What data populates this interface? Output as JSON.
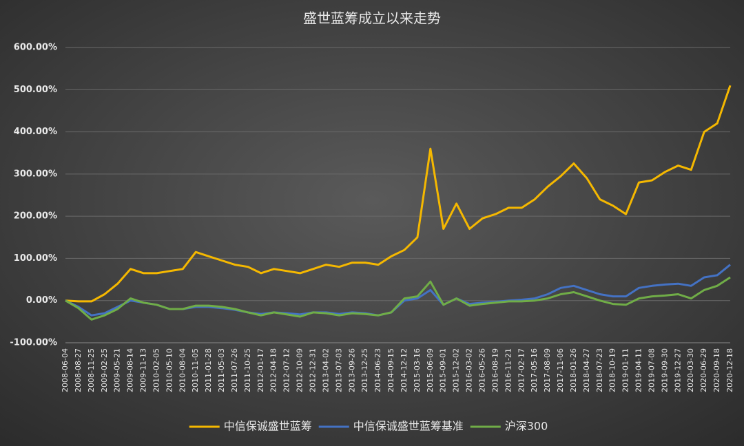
{
  "chart_data": {
    "type": "line",
    "title": "盛世蓝筹成立以来走势",
    "categories": [
      "2008-06-04",
      "2008-08-27",
      "2008-11-25",
      "2009-02-25",
      "2009-05-21",
      "2009-08-14",
      "2009-11-13",
      "2010-02-05",
      "2010-05-10",
      "2010-08-04",
      "2010-11-05",
      "2011-01-28",
      "2011-05-03",
      "2011-07-26",
      "2011-10-25",
      "2012-01-17",
      "2012-04-18",
      "2012-07-12",
      "2012-10-09",
      "2012-12-31",
      "2013-04-02",
      "2013-07-03",
      "2013-09-26",
      "2013-12-25",
      "2014-06-23",
      "2014-09-15",
      "2014-12-12",
      "2015-03-16",
      "2015-06-09",
      "2015-09-01",
      "2015-12-02",
      "2016-03-02",
      "2016-05-26",
      "2016-08-19",
      "2016-11-21",
      "2017-02-17",
      "2017-05-16",
      "2017-08-09",
      "2017-11-06",
      "2018-01-26",
      "2018-04-27",
      "2018-07-23",
      "2018-10-19",
      "2019-01-11",
      "2019-04-11",
      "2019-07-08",
      "2019-09-30",
      "2019-12-27",
      "2020-03-30",
      "2020-06-29",
      "2020-09-18",
      "2020-12-18"
    ],
    "series": [
      {
        "name": "中信保诚盛世蓝筹",
        "color": "#f5b800",
        "values": [
          0,
          -2,
          -2,
          15,
          40,
          75,
          65,
          65,
          70,
          75,
          115,
          105,
          95,
          85,
          80,
          65,
          75,
          70,
          65,
          75,
          85,
          80,
          90,
          90,
          85,
          105,
          120,
          150,
          360,
          170,
          230,
          170,
          195,
          205,
          220,
          220,
          240,
          270,
          295,
          325,
          290,
          240,
          225,
          205,
          280,
          285,
          305,
          320,
          310,
          400,
          420,
          510
        ]
      },
      {
        "name": "中信保诚盛世蓝筹基准",
        "color": "#4472c4",
        "values": [
          0,
          -15,
          -35,
          -30,
          -15,
          0,
          -5,
          -10,
          -20,
          -20,
          -15,
          -15,
          -18,
          -22,
          -28,
          -32,
          -28,
          -30,
          -33,
          -28,
          -28,
          -32,
          -28,
          -30,
          -35,
          -28,
          0,
          5,
          25,
          -10,
          5,
          -8,
          -5,
          -3,
          0,
          2,
          5,
          15,
          30,
          35,
          25,
          15,
          10,
          10,
          30,
          35,
          38,
          40,
          35,
          55,
          60,
          85
        ]
      },
      {
        "name": "沪深300",
        "color": "#70ad47",
        "values": [
          0,
          -18,
          -45,
          -35,
          -20,
          5,
          -5,
          -10,
          -20,
          -20,
          -12,
          -12,
          -15,
          -20,
          -28,
          -35,
          -28,
          -33,
          -38,
          -28,
          -30,
          -35,
          -30,
          -32,
          -35,
          -28,
          5,
          10,
          45,
          -10,
          5,
          -12,
          -8,
          -5,
          -2,
          -2,
          0,
          5,
          15,
          20,
          10,
          0,
          -8,
          -10,
          5,
          10,
          12,
          15,
          5,
          25,
          35,
          55
        ]
      }
    ],
    "ylim": [
      -100,
      600
    ],
    "yticks": [
      {
        "value": -100,
        "label": "-100.00%"
      },
      {
        "value": 0,
        "label": "0.00%"
      },
      {
        "value": 100,
        "label": "100.00%"
      },
      {
        "value": 200,
        "label": "200.00%"
      },
      {
        "value": 300,
        "label": "300.00%"
      },
      {
        "value": 400,
        "label": "400.00%"
      },
      {
        "value": 500,
        "label": "500.00%"
      },
      {
        "value": 600,
        "label": "600.00%"
      }
    ],
    "grid": true,
    "legend": "bottom"
  }
}
